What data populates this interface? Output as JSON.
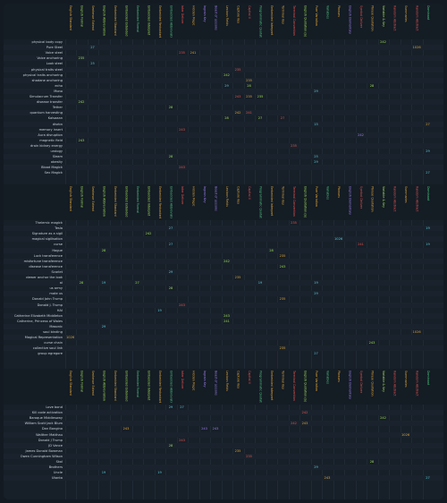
{
  "columns": [
    {
      "label": "English Standard",
      "color": "#d8a23a"
    },
    {
      "label": "English Formal",
      "color": "#9bd957"
    },
    {
      "label": "Sentence Extend",
      "color": "#d8a23a"
    },
    {
      "label": "English Abbreviation",
      "color": "#9bd957"
    },
    {
      "label": "Embedded Standard",
      "color": "#d8a23a"
    },
    {
      "label": "Embedded Extended",
      "color": "#9bd957"
    },
    {
      "label": "Embedded Formal",
      "color": "#4cc07e"
    },
    {
      "label": "Embedded Interpret",
      "color": "#9bd957"
    },
    {
      "label": "Embedded Redundant",
      "color": "#d8a23a"
    },
    {
      "label": "Embedded Abbreviation",
      "color": "#4cc07e"
    },
    {
      "label": "Inter Deliver",
      "color": "#e0524f"
    },
    {
      "label": "Hidden Magic",
      "color": "#d8a23a"
    },
    {
      "label": "Ingrain Key",
      "color": "#9b7ee8"
    },
    {
      "label": "Beast of Lessons",
      "color": "#9b7ee8"
    },
    {
      "label": "Lexicon Fields",
      "color": "#d8a23a"
    },
    {
      "label": "Capture Key",
      "color": "#d8a23a"
    },
    {
      "label": "Capital II",
      "color": "#e0524f"
    },
    {
      "label": "Programmatic Quotation",
      "color": "#4cc07e"
    },
    {
      "label": "Embedded Interpret",
      "color": "#d8a23a"
    },
    {
      "label": "Terminal Key",
      "color": "#d8a23a"
    },
    {
      "label": "Terminal Convention",
      "color": "#e0524f"
    },
    {
      "label": "English Quotation (a)",
      "color": "#9bd957"
    },
    {
      "label": "Pure Variation",
      "color": "#d8a23a"
    },
    {
      "label": "Variables",
      "color": "#4cc07e"
    },
    {
      "label": "Phrases",
      "color": "#d8a23a"
    },
    {
      "label": "English Elementary",
      "color": "#9b7ee8"
    },
    {
      "label": "Symbol Deliver",
      "color": "#e0524f"
    },
    {
      "label": "Phrase Quotation",
      "color": "#d8a23a"
    },
    {
      "label": "Variable & Key",
      "color": "#9bd957"
    },
    {
      "label": "Random Abstract",
      "color": "#e0524f"
    },
    {
      "label": "Summaries",
      "color": "#d8a23a"
    },
    {
      "label": "Random Abstract",
      "color": "#e0524f"
    },
    {
      "label": "Dominant",
      "color": "#4cc07e"
    }
  ],
  "sections": [
    {
      "rows": [
        {
          "label": "physical body copy",
          "cells": [
            {
              "col": 28,
              "val": "242",
              "color": "#9bd957"
            }
          ]
        },
        {
          "label": "Pure Steel",
          "cells": [
            {
              "col": 2,
              "val": "27",
              "color": "#5cc8d8"
            },
            {
              "col": 31,
              "val": "1026",
              "color": "#d8a23a"
            }
          ]
        },
        {
          "label": "Voice steel",
          "cells": [
            {
              "col": 10,
              "val": "235",
              "color": "#e0524f"
            },
            {
              "col": 11,
              "val": "241",
              "color": "#d8a23a"
            }
          ]
        },
        {
          "label": "Voice anchoring",
          "cells": [
            {
              "col": 1,
              "val": "235",
              "color": "#9bd957"
            }
          ]
        },
        {
          "label": "Look steel",
          "cells": [
            {
              "col": 2,
              "val": "25",
              "color": "#5cc8d8"
            }
          ]
        },
        {
          "label": "physical traits steel",
          "cells": [
            {
              "col": 15,
              "val": "235",
              "color": "#e0524f"
            }
          ]
        },
        {
          "label": "physical traits anchoring",
          "cells": [
            {
              "col": 14,
              "val": "242",
              "color": "#9bd957"
            }
          ]
        },
        {
          "label": "shadane anchoring",
          "cells": [
            {
              "col": 16,
              "val": "235",
              "color": "#d8a23a"
            }
          ]
        },
        {
          "label": "echo",
          "cells": [
            {
              "col": 14,
              "val": "29",
              "color": "#5cc8d8"
            },
            {
              "col": 16,
              "val": "28",
              "color": "#9bd957"
            },
            {
              "col": 27,
              "val": "28",
              "color": "#9bd957"
            }
          ]
        },
        {
          "label": "Mono",
          "cells": [
            {
              "col": 22,
              "val": "29",
              "color": "#5cc8d8"
            }
          ]
        },
        {
          "label": "Simulacrum Transfer",
          "cells": [
            {
              "col": 15,
              "val": "243",
              "color": "#e0524f"
            },
            {
              "col": 16,
              "val": "235",
              "color": "#d8a23a"
            },
            {
              "col": 17,
              "val": "235",
              "color": "#9bd957"
            }
          ]
        },
        {
          "label": "disease transfer",
          "cells": [
            {
              "col": 1,
              "val": "242",
              "color": "#9bd957"
            }
          ]
        },
        {
          "label": "Tether",
          "cells": [
            {
              "col": 9,
              "val": "28",
              "color": "#9bd957"
            }
          ]
        },
        {
          "label": "quantum harvesting",
          "cells": [
            {
              "col": 15,
              "val": "242",
              "color": "#d8a23a"
            },
            {
              "col": 16,
              "val": "241",
              "color": "#e0524f"
            }
          ]
        },
        {
          "label": "Kalsaaan",
          "cells": [
            {
              "col": 14,
              "val": "28",
              "color": "#9bd957"
            },
            {
              "col": 17,
              "val": "27",
              "color": "#9bd957"
            },
            {
              "col": 19,
              "val": "27",
              "color": "#e0524f"
            }
          ]
        },
        {
          "label": "disrbn",
          "cells": [
            {
              "col": 22,
              "val": "15",
              "color": "#5cc8d8"
            },
            {
              "col": 32,
              "val": "27",
              "color": "#d8a23a"
            }
          ]
        },
        {
          "label": "memory insert",
          "cells": [
            {
              "col": 10,
              "val": "243",
              "color": "#e0524f"
            }
          ]
        },
        {
          "label": "Aura disruption",
          "cells": [
            {
              "col": 26,
              "val": "242",
              "color": "#9b7ee8"
            }
          ]
        },
        {
          "label": "magnetic field",
          "cells": [
            {
              "col": 1,
              "val": "243",
              "color": "#9bd957"
            }
          ]
        },
        {
          "label": "drain kidney energy",
          "cells": [
            {
              "col": 20,
              "val": "235",
              "color": "#e0524f"
            }
          ]
        },
        {
          "label": "urology",
          "cells": [
            {
              "col": 32,
              "val": "29",
              "color": "#5cc8d8"
            }
          ]
        },
        {
          "label": "Sleam",
          "cells": [
            {
              "col": 9,
              "val": "28",
              "color": "#9bd957"
            },
            {
              "col": 22,
              "val": "25",
              "color": "#5cc8d8"
            }
          ]
        },
        {
          "label": "obesity",
          "cells": [
            {
              "col": 22,
              "val": "29",
              "color": "#5cc8d8"
            }
          ]
        },
        {
          "label": "Blood Magick",
          "cells": [
            {
              "col": 10,
              "val": "243",
              "color": "#e0524f"
            }
          ]
        },
        {
          "label": "Sex Magick",
          "cells": [
            {
              "col": 32,
              "val": "27",
              "color": "#5cc8d8"
            }
          ]
        }
      ]
    },
    {
      "rows": [
        {
          "label": "Thelemic magick",
          "cells": [
            {
              "col": 20,
              "val": "235",
              "color": "#e0524f"
            }
          ]
        },
        {
          "label": "Tesla",
          "cells": [
            {
              "col": 9,
              "val": "27",
              "color": "#5cc8d8"
            },
            {
              "col": 32,
              "val": "19",
              "color": "#5cc8d8"
            }
          ]
        },
        {
          "label": "Signature as a sigil",
          "cells": [
            {
              "col": 7,
              "val": "242",
              "color": "#9bd957"
            }
          ]
        },
        {
          "label": "magical sigilisation",
          "cells": [
            {
              "col": 24,
              "val": "1026",
              "color": "#5cc8d8"
            }
          ]
        },
        {
          "label": "curse",
          "cells": [
            {
              "col": 9,
              "val": "27",
              "color": "#5cc8d8"
            },
            {
              "col": 26,
              "val": "241",
              "color": "#e0524f"
            },
            {
              "col": 32,
              "val": "19",
              "color": "#5cc8d8"
            }
          ]
        },
        {
          "label": "Hague",
          "cells": [
            {
              "col": 3,
              "val": "28",
              "color": "#9bd957"
            },
            {
              "col": 18,
              "val": "28",
              "color": "#9bd957"
            }
          ]
        },
        {
          "label": "Luck transference",
          "cells": [
            {
              "col": 19,
              "val": "235",
              "color": "#d8a23a"
            }
          ]
        },
        {
          "label": "misfortune transference",
          "cells": [
            {
              "col": 14,
              "val": "242",
              "color": "#9bd957"
            }
          ]
        },
        {
          "label": "disease transference",
          "cells": [
            {
              "col": 19,
              "val": "243",
              "color": "#9bd957"
            }
          ]
        },
        {
          "label": "Scarlet",
          "cells": [
            {
              "col": 9,
              "val": "29",
              "color": "#5cc8d8"
            }
          ]
        },
        {
          "label": "viewer anchor the look",
          "cells": [
            {
              "col": 15,
              "val": "235",
              "color": "#d8a23a"
            }
          ]
        },
        {
          "label": "ai",
          "cells": [
            {
              "col": 1,
              "val": "28",
              "color": "#9bd957"
            },
            {
              "col": 3,
              "val": "19",
              "color": "#5cc8d8"
            },
            {
              "col": 6,
              "val": "27",
              "color": "#9bd957"
            },
            {
              "col": 17,
              "val": "19",
              "color": "#5cc8d8"
            },
            {
              "col": 22,
              "val": "19",
              "color": "#5cc8d8"
            }
          ]
        },
        {
          "label": "us army",
          "cells": [
            {
              "col": 9,
              "val": "28",
              "color": "#9bd957"
            }
          ]
        },
        {
          "label": "mate us",
          "cells": [
            {
              "col": 22,
              "val": "29",
              "color": "#5cc8d8"
            }
          ]
        },
        {
          "label": "Donald John Trump",
          "cells": [
            {
              "col": 19,
              "val": "235",
              "color": "#d8a23a"
            }
          ]
        },
        {
          "label": "Donald J. Trump",
          "cells": [
            {
              "col": 10,
              "val": "243",
              "color": "#e0524f"
            }
          ]
        },
        {
          "label": "HAI",
          "cells": [
            {
              "col": 8,
              "val": "19",
              "color": "#5cc8d8"
            }
          ]
        },
        {
          "label": "Catherine Elizabeth Middleton",
          "cells": [
            {
              "col": 14,
              "val": "243",
              "color": "#9bd957"
            }
          ]
        },
        {
          "label": "Catherine, Princess of Wales",
          "cells": [
            {
              "col": 14,
              "val": "241",
              "color": "#9bd957"
            }
          ]
        },
        {
          "label": "Masonic",
          "cells": [
            {
              "col": 3,
              "val": "29",
              "color": "#5cc8d8"
            }
          ]
        },
        {
          "label": "soul binding",
          "cells": [
            {
              "col": 31,
              "val": "1026",
              "color": "#d8a23a"
            }
          ]
        },
        {
          "label": "Magical Representation",
          "cells": [
            {
              "col": 0,
              "val": "1026",
              "color": "#d8a23a"
            }
          ]
        },
        {
          "label": "curse chain",
          "cells": [
            {
              "col": 27,
              "val": "243",
              "color": "#9bd957"
            }
          ]
        },
        {
          "label": "collective soul link",
          "cells": [
            {
              "col": 19,
              "val": "235",
              "color": "#d8a23a"
            }
          ]
        },
        {
          "label": "group egregore",
          "cells": [
            {
              "col": 22,
              "val": "27",
              "color": "#5cc8d8"
            }
          ]
        }
      ]
    },
    {
      "rows": [
        {
          "label": "Love bond",
          "cells": [
            {
              "col": 9,
              "val": "29",
              "color": "#5cc8d8"
            },
            {
              "col": 10,
              "val": "27",
              "color": "#5cc8d8"
            }
          ]
        },
        {
          "label": "Kill code activation",
          "cells": [
            {
              "col": 21,
              "val": "242",
              "color": "#e0524f"
            }
          ]
        },
        {
          "label": "Baroque Middlesway",
          "cells": [
            {
              "col": 28,
              "val": "242",
              "color": "#9bd957"
            }
          ]
        },
        {
          "label": "William Scott Jack Blum",
          "cells": [
            {
              "col": 20,
              "val": "242",
              "color": "#e0524f"
            },
            {
              "col": 21,
              "val": "243",
              "color": "#d8a23a"
            }
          ]
        },
        {
          "label": "Dan Bongino",
          "cells": [
            {
              "col": 5,
              "val": "243",
              "color": "#d8a23a"
            },
            {
              "col": 12,
              "val": "243",
              "color": "#9b7ee8"
            },
            {
              "col": 13,
              "val": "243",
              "color": "#9b7ee8"
            }
          ]
        },
        {
          "label": "Walther Matthau",
          "cells": [
            {
              "col": 30,
              "val": "1026",
              "color": "#d8a23a"
            }
          ]
        },
        {
          "label": "Donald J Trump",
          "cells": [
            {
              "col": 10,
              "val": "243",
              "color": "#e0524f"
            }
          ]
        },
        {
          "label": "JD Vance",
          "cells": [
            {
              "col": 9,
              "val": "28",
              "color": "#9bd957"
            }
          ]
        },
        {
          "label": "James Donald Bowman",
          "cells": [
            {
              "col": 15,
              "val": "235",
              "color": "#d8a23a"
            }
          ]
        },
        {
          "label": "Owen Cunningham Wilson",
          "cells": [
            {
              "col": 16,
              "val": "235",
              "color": "#e0524f"
            }
          ]
        },
        {
          "label": "Skol",
          "cells": [
            {
              "col": 27,
              "val": "28",
              "color": "#9bd957"
            }
          ]
        },
        {
          "label": "Brothers",
          "cells": [
            {
              "col": 22,
              "val": "29",
              "color": "#5cc8d8"
            }
          ]
        },
        {
          "label": "Uncle",
          "cells": [
            {
              "col": 3,
              "val": "19",
              "color": "#5cc8d8"
            },
            {
              "col": 8,
              "val": "19",
              "color": "#5cc8d8"
            }
          ]
        },
        {
          "label": "Utanta",
          "cells": [
            {
              "col": 23,
              "val": "243",
              "color": "#d8a23a"
            },
            {
              "col": 32,
              "val": "27",
              "color": "#5cc8d8"
            }
          ]
        }
      ]
    }
  ]
}
